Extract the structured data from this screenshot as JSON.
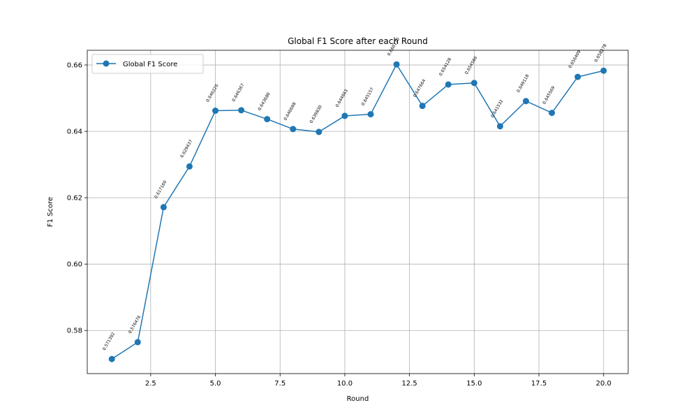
{
  "chart_data": {
    "type": "line",
    "title": "Global F1 Score after each Round",
    "xlabel": "Round",
    "ylabel": "F1 Score",
    "xlim": [
      0.05,
      20.95
    ],
    "ylim": [
      0.567,
      0.66443
    ],
    "x_ticks": [
      2.5,
      5.0,
      7.5,
      10.0,
      12.5,
      15.0,
      17.5,
      20.0
    ],
    "x_tick_labels": [
      "2.5",
      "5.0",
      "7.5",
      "10.0",
      "12.5",
      "15.0",
      "17.5",
      "20.0"
    ],
    "y_ticks": [
      0.58,
      0.6,
      0.62,
      0.64,
      0.66
    ],
    "y_tick_labels": [
      "0.58",
      "0.60",
      "0.62",
      "0.64",
      "0.66"
    ],
    "grid": true,
    "legend_position": "top-left",
    "series": [
      {
        "name": "Global F1 Score",
        "color": "#1f77b4",
        "marker": "circle",
        "x": [
          1,
          2,
          3,
          4,
          5,
          6,
          7,
          8,
          9,
          10,
          11,
          12,
          13,
          14,
          15,
          16,
          17,
          18,
          19,
          20
        ],
        "y": [
          0.571392,
          0.576476,
          0.61716,
          0.629437,
          0.646226,
          0.646367,
          0.64368,
          0.640698,
          0.63983,
          0.644663,
          0.645157,
          0.66017,
          0.647664,
          0.654128,
          0.654586,
          0.641532,
          0.649118,
          0.645569,
          0.656409,
          0.658278
        ],
        "labels": [
          "0.571392",
          "0.576476",
          "0.617160",
          "0.629437",
          "0.646226",
          "0.646367",
          "0.643680",
          "0.640698",
          "0.639830",
          "0.644663",
          "0.645157",
          "0.660170",
          "0.647664",
          "0.654128",
          "0.654586",
          "0.641532",
          "0.649118",
          "0.645569",
          "0.656409",
          "0.658278"
        ]
      }
    ]
  }
}
